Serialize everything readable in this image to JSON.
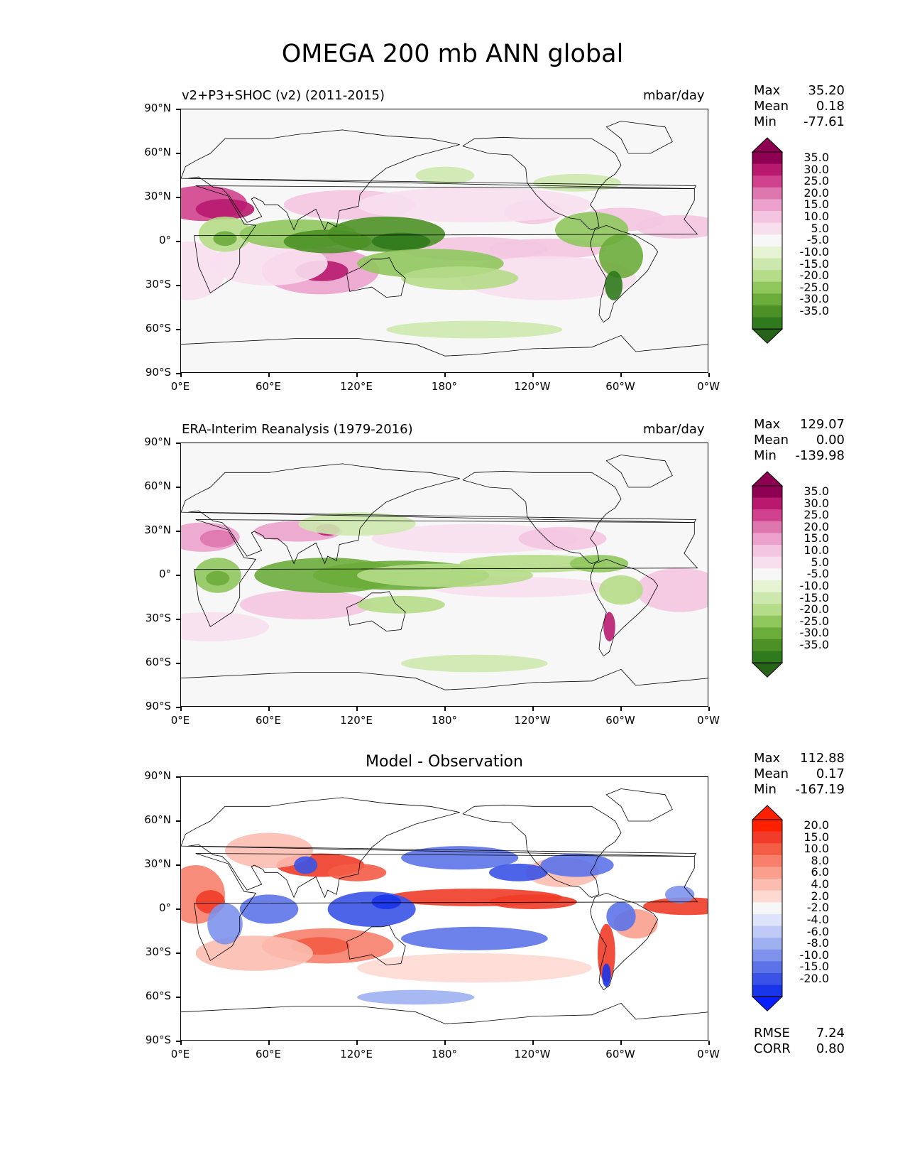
{
  "title": "OMEGA 200 mb ANN global",
  "panels": [
    {
      "subtitle": "v2+P3+SHOC (v2) (2011-2015)",
      "units": "mbar/day",
      "stats": [
        {
          "label": "Max",
          "value": "35.20"
        },
        {
          "label": "Mean",
          "value": "0.18"
        },
        {
          "label": "Min",
          "value": "-77.61"
        }
      ],
      "colorbar_labels": [
        "35.0",
        "30.0",
        "25.0",
        "20.0",
        "15.0",
        "10.0",
        "5.0",
        "-5.0",
        "-10.0",
        "-15.0",
        "-20.0",
        "-25.0",
        "-30.0",
        "-35.0"
      ]
    },
    {
      "subtitle": "ERA-Interim Reanalysis (1979-2016)",
      "units": "mbar/day",
      "stats": [
        {
          "label": "Max",
          "value": "129.07"
        },
        {
          "label": "Mean",
          "value": "0.00"
        },
        {
          "label": "Min",
          "value": "-139.98"
        }
      ],
      "colorbar_labels": [
        "35.0",
        "30.0",
        "25.0",
        "20.0",
        "15.0",
        "10.0",
        "5.0",
        "-5.0",
        "-10.0",
        "-15.0",
        "-20.0",
        "-25.0",
        "-30.0",
        "-35.0"
      ]
    },
    {
      "subtitle": "Model - Observation",
      "stats": [
        {
          "label": "Max",
          "value": "112.88"
        },
        {
          "label": "Mean",
          "value": "0.17"
        },
        {
          "label": "Min",
          "value": "-167.19"
        }
      ],
      "colorbar_labels": [
        "20.0",
        "15.0",
        "10.0",
        "8.0",
        "6.0",
        "4.0",
        "2.0",
        "-2.0",
        "-4.0",
        "-6.0",
        "-8.0",
        "-10.0",
        "-15.0",
        "-20.0"
      ],
      "metrics": [
        {
          "label": "RMSE",
          "value": "7.24"
        },
        {
          "label": "CORR",
          "value": "0.80"
        }
      ]
    }
  ],
  "lat_ticks": [
    "90°N",
    "60°N",
    "30°N",
    "0°",
    "30°S",
    "60°S",
    "90°S"
  ],
  "lon_ticks": [
    "0°E",
    "60°E",
    "120°E",
    "180°",
    "120°W",
    "60°W",
    "0°W"
  ],
  "colors": {
    "pos_scale": [
      "#8e0152",
      "#b8196f",
      "#d0428d",
      "#de77ae",
      "#eca2cc",
      "#f3c5e0",
      "#f8dfee",
      "#f7f7f7"
    ],
    "neg_scale": [
      "#f7f7f7",
      "#e6f4d3",
      "#cde8ae",
      "#b5dc88",
      "#8fc75d",
      "#6bac3b",
      "#4d9126",
      "#2f7a1c",
      "#276419"
    ],
    "diff_pos": [
      "#ff2000",
      "#f03c28",
      "#f35c45",
      "#f77f6c",
      "#fa9e8d",
      "#fcbcb0",
      "#fdd9d2",
      "#ffffff"
    ],
    "diff_neg": [
      "#ffffff",
      "#dce3fb",
      "#bfcbf6",
      "#9fb0f1",
      "#7e92ec",
      "#5c73e8",
      "#3a53e6",
      "#1a34e9",
      "#0a1fff"
    ]
  }
}
